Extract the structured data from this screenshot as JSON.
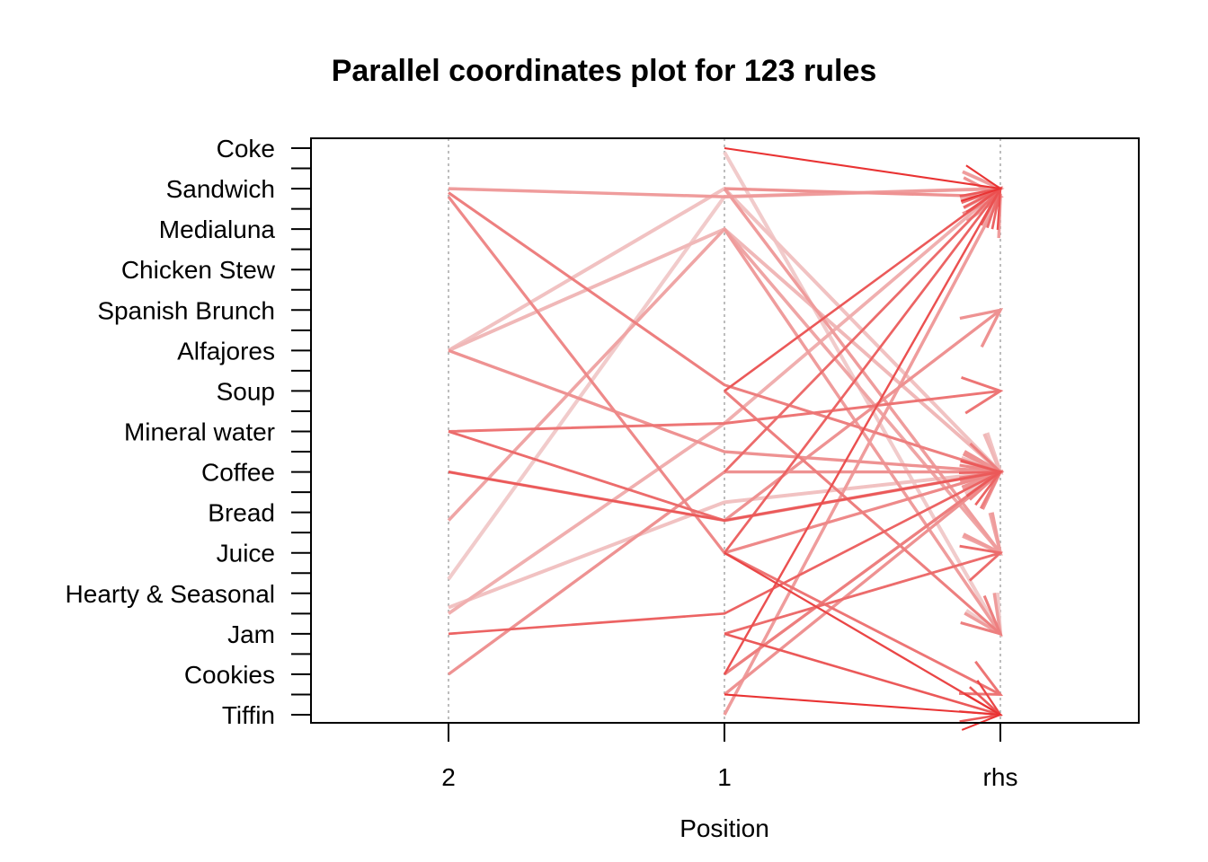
{
  "chart_data": {
    "type": "parallel-coordinates",
    "title": "Parallel coordinates plot for 123 rules",
    "xlabel": "Position",
    "x_axes": [
      "2",
      "1",
      "rhs"
    ],
    "y_levels": [
      "Coke",
      "Sandwich",
      "Medialuna",
      "Chicken Stew",
      "Spanish Brunch",
      "Alfajores",
      "Soup",
      "Mineral water",
      "Coffee",
      "Bread",
      "Juice",
      "Hearty & Seasonal",
      "Jam",
      "Cookies",
      "Tiffin"
    ],
    "grid": true,
    "rules": [
      {
        "lhs2": null,
        "lhs1": 0,
        "rhs": 2,
        "s": 0.9
      },
      {
        "lhs2": 2,
        "lhs1": 2.4,
        "rhs": 2,
        "s": 0.35
      },
      {
        "lhs2": 2.4,
        "lhs1": 20,
        "rhs": 16,
        "s": 0.45
      },
      {
        "lhs2": 2.2,
        "lhs1": 11.7,
        "rhs": 16,
        "s": 0.5
      },
      {
        "lhs2": 10,
        "lhs1": 2,
        "rhs": 16,
        "s": 0.15
      },
      {
        "lhs2": 10,
        "lhs1": 4,
        "rhs": 16,
        "s": 0.2
      },
      {
        "lhs2": 10,
        "lhs1": 15,
        "rhs": 16,
        "s": 0.4
      },
      {
        "lhs2": 14,
        "lhs1": 18.4,
        "rhs": 16,
        "s": 0.6
      },
      {
        "lhs2": 14,
        "lhs1": 13.6,
        "rhs": 12,
        "s": 0.55
      },
      {
        "lhs2": 16,
        "lhs1": 18.4,
        "rhs": 16,
        "s": 0.7
      },
      {
        "lhs2": 16,
        "lhs1": 18.4,
        "rhs": 8,
        "s": 0.4
      },
      {
        "lhs2": 18.4,
        "lhs1": 4,
        "rhs": 20,
        "s": 0.3
      },
      {
        "lhs2": 22.7,
        "lhs1": 17.5,
        "rhs": 16,
        "s": 0.15
      },
      {
        "lhs2": 26,
        "lhs1": 16,
        "rhs": 16,
        "s": 0.4
      },
      {
        "lhs2": 23,
        "lhs1": 13.6,
        "rhs": 2,
        "s": 0.25
      },
      {
        "lhs2": 24,
        "lhs1": 23,
        "rhs": 16,
        "s": 0.65
      },
      {
        "lhs2": 21.3,
        "lhs1": 2.4,
        "rhs": 2,
        "s": 0.1
      },
      {
        "lhs2": null,
        "lhs1": 2,
        "rhs": 2.4,
        "s": 0.4
      },
      {
        "lhs2": null,
        "lhs1": 2,
        "rhs": 20,
        "s": 0.35
      },
      {
        "lhs2": null,
        "lhs1": 4,
        "rhs": 24,
        "s": 0.35
      },
      {
        "lhs2": null,
        "lhs1": 12,
        "rhs": 2,
        "s": 0.7
      },
      {
        "lhs2": null,
        "lhs1": 12,
        "rhs": 24,
        "s": 0.5
      },
      {
        "lhs2": null,
        "lhs1": 16,
        "rhs": 2,
        "s": 0.6
      },
      {
        "lhs2": null,
        "lhs1": 20,
        "rhs": 2,
        "s": 0.65
      },
      {
        "lhs2": null,
        "lhs1": 20,
        "rhs": 28,
        "s": 0.8
      },
      {
        "lhs2": null,
        "lhs1": 20,
        "rhs": 27,
        "s": 0.55
      },
      {
        "lhs2": null,
        "lhs1": 24,
        "rhs": 28,
        "s": 0.7
      },
      {
        "lhs2": null,
        "lhs1": 24,
        "rhs": 20,
        "s": 0.6
      },
      {
        "lhs2": null,
        "lhs1": 26,
        "rhs": 16,
        "s": 0.5
      },
      {
        "lhs2": null,
        "lhs1": 26,
        "rhs": 2,
        "s": 0.75
      },
      {
        "lhs2": null,
        "lhs1": 26,
        "rhs": 16,
        "s": 0.45
      },
      {
        "lhs2": null,
        "lhs1": 27,
        "rhs": 28,
        "s": 0.9
      },
      {
        "lhs2": null,
        "lhs1": 27,
        "rhs": 16,
        "s": 0.4
      },
      {
        "lhs2": null,
        "lhs1": 28,
        "rhs": 2.4,
        "s": 0.35
      },
      {
        "lhs2": null,
        "lhs1": 18.4,
        "rhs": 16,
        "s": 0.3
      },
      {
        "lhs2": null,
        "lhs1": 0.2,
        "rhs": 24,
        "s": 0.1
      }
    ]
  }
}
